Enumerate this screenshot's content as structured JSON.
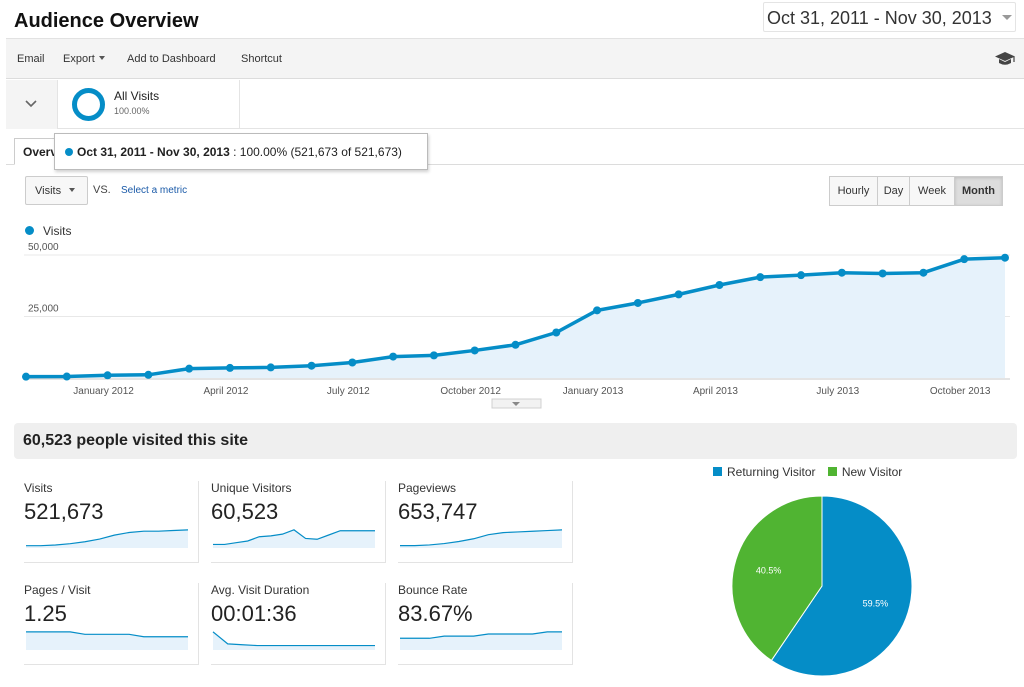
{
  "header": {
    "title": "Audience Overview",
    "date_range": "Oct 31, 2011 - Nov 30, 2013"
  },
  "toolbar": {
    "email": "Email",
    "export": "Export",
    "add_to_dashboard": "Add to Dashboard",
    "shortcut": "Shortcut",
    "icon": "graduation-cap-icon"
  },
  "segment": {
    "name": "All Visits",
    "percent": "100.00%",
    "color": "#058dc7"
  },
  "tabs": {
    "overview_label": "Overview"
  },
  "tooltip": {
    "range": "Oct 31, 2011 - Nov 30, 2013",
    "detail": ": 100.00% (521,673 of 521,673)"
  },
  "controls": {
    "metric": "Visits",
    "vs": "VS.",
    "select_metric": "Select a metric",
    "time_buttons": [
      "Hourly",
      "Day",
      "Week",
      "Month"
    ],
    "active_time": "Month"
  },
  "chart_data": {
    "type": "area",
    "series": [
      {
        "name": "Visits",
        "color": "#058dc7",
        "values": [
          550,
          600,
          1100,
          1300,
          3800,
          4100,
          4300,
          5000,
          6300,
          8700,
          9200,
          11200,
          13500,
          18500,
          27500,
          30500,
          34000,
          37800,
          41000,
          41800,
          42800,
          42500,
          42800,
          48300,
          48900
        ]
      }
    ],
    "y_ticks": [
      {
        "value": 25000,
        "label": "25,000"
      },
      {
        "value": 50000,
        "label": "50,000"
      }
    ],
    "x_ticks": [
      {
        "index": 2,
        "label": "January 2012"
      },
      {
        "index": 5,
        "label": "April 2012"
      },
      {
        "index": 8,
        "label": "July 2012"
      },
      {
        "index": 11,
        "label": "October 2012"
      },
      {
        "index": 14,
        "label": "January 2013"
      },
      {
        "index": 17,
        "label": "April 2013"
      },
      {
        "index": 20,
        "label": "July 2013"
      },
      {
        "index": 23,
        "label": "October 2013"
      }
    ],
    "ylim": [
      0,
      50000
    ]
  },
  "summary": {
    "title": "60,523 people visited this site",
    "metrics": [
      {
        "label": "Visits",
        "value": "521,673",
        "spark": [
          2,
          2,
          3,
          5,
          8,
          12,
          18,
          22,
          24,
          24,
          25,
          26
        ]
      },
      {
        "label": "Unique Visitors",
        "value": "60,523",
        "spark": [
          3,
          3,
          5,
          7,
          12,
          13,
          15,
          20,
          10,
          9,
          14,
          19,
          19,
          19,
          19
        ]
      },
      {
        "label": "Pageviews",
        "value": "653,747",
        "spark": [
          2,
          2,
          3,
          5,
          8,
          12,
          18,
          21,
          22,
          23,
          24,
          25
        ]
      },
      {
        "label": "Pages / Visit",
        "value": "1.25",
        "spark": [
          7,
          7,
          7,
          7,
          6,
          6,
          6,
          6,
          5,
          5,
          5,
          5
        ]
      },
      {
        "label": "Avg. Visit Duration",
        "value": "00:01:36",
        "spark": [
          20,
          6,
          5,
          4,
          4,
          4,
          4,
          4,
          4,
          4,
          4,
          4
        ]
      },
      {
        "label": "Bounce Rate",
        "value": "83.67%",
        "spark": [
          5,
          5,
          5,
          6,
          6,
          6,
          7,
          7,
          7,
          7,
          8,
          8
        ]
      }
    ]
  },
  "pie": {
    "legend": [
      {
        "label": "Returning Visitor",
        "color": "#058dc7"
      },
      {
        "label": "New Visitor",
        "color": "#50b432"
      }
    ],
    "slices": [
      {
        "label": "Returning Visitor",
        "value": 59.5,
        "text": "59.5%",
        "color": "#058dc7"
      },
      {
        "label": "New Visitor",
        "value": 40.5,
        "text": "40.5%",
        "color": "#50b432"
      }
    ]
  }
}
